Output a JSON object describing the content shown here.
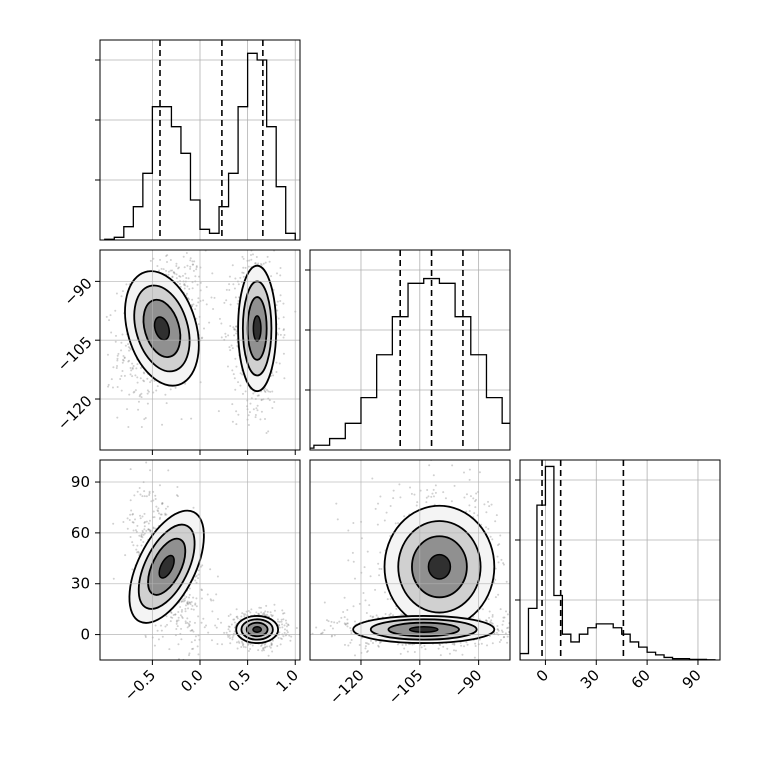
{
  "chart_data": {
    "type": "corner",
    "grid": true,
    "parameters": [
      "",
      "",
      ""
    ],
    "histograms": [
      {
        "param_index": 0,
        "range": [
          -1.05,
          1.05
        ],
        "bin_edges": [
          -1.0,
          -0.9,
          -0.8,
          -0.7,
          -0.6,
          -0.5,
          -0.4,
          -0.3,
          -0.2,
          -0.1,
          0.0,
          0.1,
          0.2,
          0.3,
          0.4,
          0.5,
          0.6,
          0.7,
          0.8,
          0.9,
          1.0
        ],
        "counts": [
          0.5,
          2,
          10,
          25,
          50,
          100,
          100,
          85,
          65,
          30,
          8,
          5,
          25,
          50,
          100,
          140,
          135,
          85,
          40,
          5
        ],
        "ymax": 150,
        "quantiles": [
          -0.42,
          0.23,
          0.66
        ]
      },
      {
        "param_index": 1,
        "range": [
          -133,
          -82
        ],
        "bin_edges": [
          -140,
          -136,
          -132,
          -128,
          -124,
          -120,
          -116,
          -112,
          -108,
          -104,
          -100,
          -96,
          -92,
          -88,
          -84,
          -80,
          -76,
          -72,
          -68,
          -64,
          -60
        ],
        "counts": [
          1,
          2,
          5,
          12,
          28,
          55,
          100,
          140,
          175,
          180,
          175,
          140,
          100,
          55,
          28,
          12,
          5,
          2,
          1,
          0.5
        ],
        "ymax": 210,
        "quantiles": [
          -110,
          -102,
          -94
        ]
      },
      {
        "param_index": 2,
        "range": [
          -15,
          103
        ],
        "bin_edges": [
          -15,
          -10,
          -5,
          0,
          5,
          10,
          15,
          20,
          25,
          30,
          35,
          40,
          45,
          50,
          55,
          60,
          65,
          70,
          75,
          80,
          85,
          90,
          95,
          100
        ],
        "counts": [
          5,
          40,
          120,
          150,
          50,
          20,
          14,
          20,
          25,
          28,
          28,
          25,
          20,
          14,
          10,
          6,
          4,
          2,
          1,
          1,
          0.5,
          0.5,
          0.2
        ],
        "ymax": 155,
        "quantiles": [
          -2,
          9,
          46
        ]
      }
    ],
    "panels": [
      {
        "row": 1,
        "col": 0,
        "x_param": 0,
        "y_param": 1,
        "xlim": [
          -1.05,
          1.05
        ],
        "ylim": [
          -133,
          -82
        ],
        "clusters": [
          {
            "mean": [
              -0.4,
              -102
            ],
            "sd": [
              0.18,
              7.5
            ],
            "rho": 0.3
          },
          {
            "mean": [
              0.6,
              -102
            ],
            "sd": [
              0.1,
              8
            ],
            "rho": 0.0
          }
        ]
      },
      {
        "row": 2,
        "col": 0,
        "x_param": 0,
        "y_param": 2,
        "xlim": [
          -1.05,
          1.05
        ],
        "ylim": [
          -15,
          103
        ],
        "clusters": [
          {
            "mean": [
              -0.35,
              40
            ],
            "sd": [
              0.15,
              18
            ],
            "rho": -0.45
          },
          {
            "mean": [
              0.6,
              3
            ],
            "sd": [
              0.11,
              4
            ],
            "rho": 0.0
          }
        ]
      },
      {
        "row": 2,
        "col": 1,
        "x_param": 1,
        "y_param": 2,
        "xlim": [
          -133,
          -82
        ],
        "ylim": [
          -15,
          103
        ],
        "clusters": [
          {
            "mean": [
              -100,
              40
            ],
            "sd": [
              7,
              18
            ],
            "rho": 0.0
          },
          {
            "mean": [
              -104,
              3
            ],
            "sd": [
              9,
              4
            ],
            "rho": 0.0
          }
        ]
      }
    ],
    "x_ticks": [
      {
        "values": [
          -0.5,
          0.0,
          0.5,
          1.0
        ],
        "labels": [
          "−0.5",
          "0.0",
          "0.5",
          "1.0"
        ]
      },
      {
        "values": [
          -120,
          -105,
          -90
        ],
        "labels": [
          "−120",
          "−105",
          "−90"
        ]
      },
      {
        "values": [
          0,
          30,
          60,
          90
        ],
        "labels": [
          "0",
          "30",
          "60",
          "90"
        ]
      }
    ],
    "y_ticks": [
      {
        "values": [
          -90,
          -105,
          -120
        ],
        "labels": [
          "−90",
          "−105",
          "−120"
        ]
      },
      {
        "values": [
          90,
          60,
          30,
          0
        ],
        "labels": [
          "90",
          "60",
          "30",
          "0"
        ]
      }
    ]
  }
}
